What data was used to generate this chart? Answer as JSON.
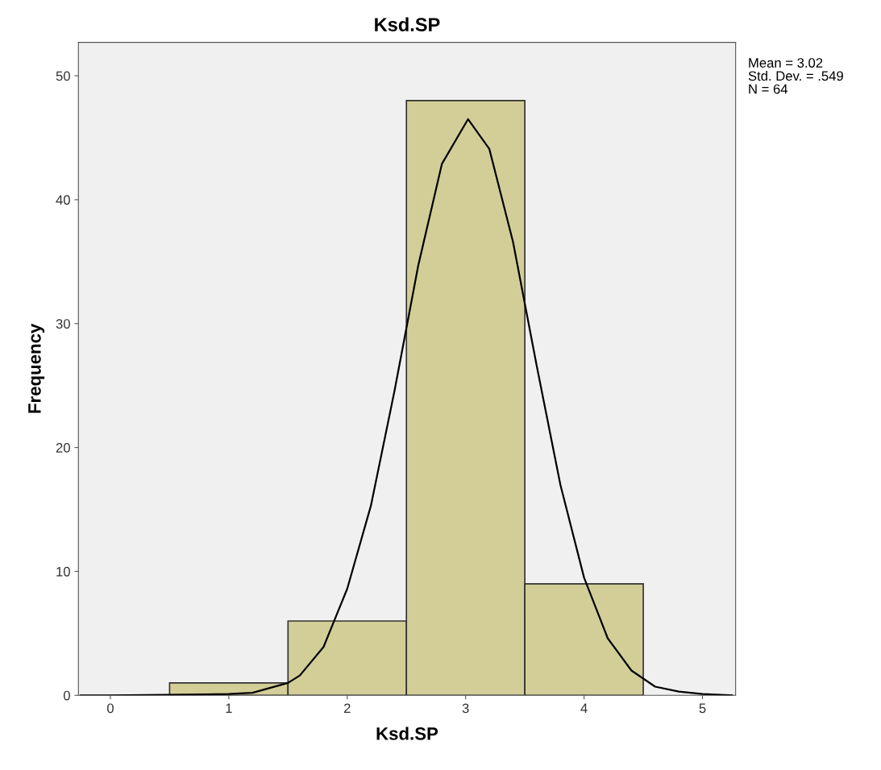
{
  "chart_data": {
    "type": "histogram",
    "title": "Ksd.SP",
    "xlabel": "Ksd.SP",
    "ylabel": "Frequency",
    "bins": [
      0.5,
      1.5,
      2.5,
      3.5,
      4.5
    ],
    "values": [
      1,
      6,
      48,
      9
    ],
    "color": "#d3ce97",
    "series": [
      {
        "type": "line",
        "color": "#000000",
        "x": [
          -0.25,
          0.0,
          1.0,
          1.2,
          1.5,
          1.6,
          1.8,
          2.0,
          2.2,
          2.4,
          2.6,
          2.8,
          3.02,
          3.2,
          3.4,
          3.6,
          3.8,
          4.0,
          4.2,
          4.4,
          4.6,
          4.8,
          5.0,
          5.25
        ],
        "values": [
          0,
          0,
          0.1,
          0.2,
          1.0,
          1.6,
          3.9,
          8.6,
          15.3,
          24.6,
          34.7,
          42.9,
          46.5,
          44.1,
          36.6,
          26.6,
          17.0,
          9.5,
          4.6,
          2.0,
          0.7,
          0.3,
          0.1,
          0
        ]
      }
    ],
    "xlim": [
      -0.27,
      5.28
    ],
    "ylim": [
      0,
      52.7
    ],
    "xticks": [
      0,
      1,
      2,
      3,
      4,
      5
    ],
    "yticks": [
      0,
      10,
      20,
      30,
      40,
      50
    ],
    "grid": false,
    "marker": "none",
    "line_style": "solid",
    "annotations": [
      "Mean = 3.02",
      "Std. Dev. = .549",
      "N = 64"
    ]
  }
}
